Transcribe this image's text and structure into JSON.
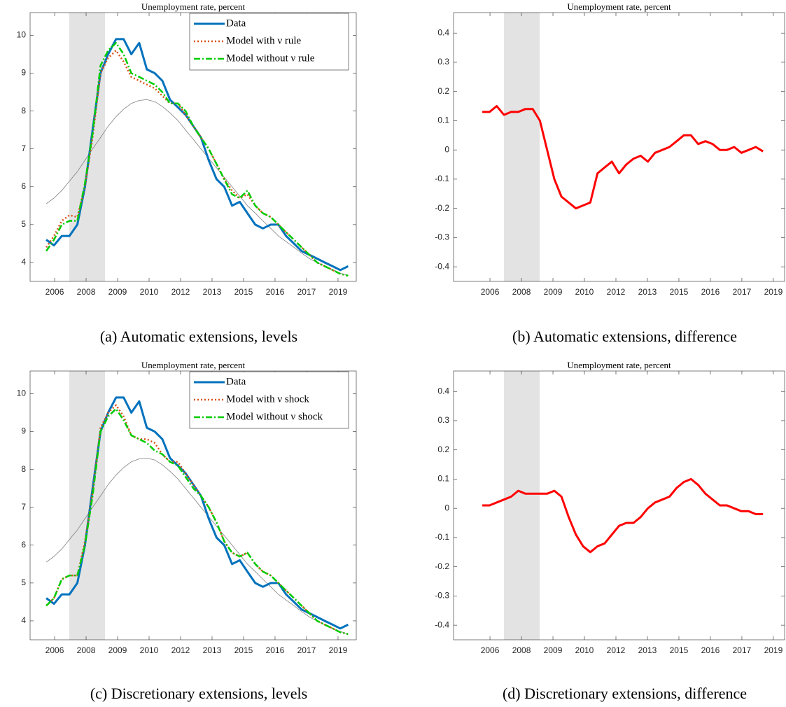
{
  "chart_data": [
    {
      "type": "line",
      "title": "Unemployment rate, percent",
      "caption": "(a) Automatic extensions, levels",
      "x": [
        2005.83,
        2006.17,
        2006.52,
        2006.86,
        2007.21,
        2007.55,
        2007.89,
        2008.24,
        2008.58,
        2008.93,
        2009.27,
        2009.61,
        2009.96,
        2010.3,
        2010.65,
        2010.99,
        2011.33,
        2011.68,
        2012.02,
        2012.37,
        2012.71,
        2013.05,
        2013.4,
        2013.74,
        2014.09,
        2014.43,
        2014.77,
        2015.12,
        2015.46,
        2015.81,
        2016.15,
        2016.49,
        2016.84,
        2017.18,
        2017.53,
        2017.87,
        2018.21,
        2018.56,
        2018.9,
        2019.25
      ],
      "series": [
        {
          "color": "#808080",
          "style": "solid",
          "width": 0.8,
          "values": [
            5.55,
            5.7,
            5.9,
            6.15,
            6.4,
            6.7,
            7.0,
            7.3,
            7.6,
            7.85,
            8.05,
            8.2,
            8.28,
            8.3,
            8.25,
            8.12,
            7.95,
            7.75,
            7.5,
            7.25,
            7.0,
            6.75,
            6.5,
            6.25,
            6.0,
            5.75,
            5.5,
            5.3,
            5.1,
            4.9,
            4.7,
            4.55,
            4.4,
            4.25,
            4.1,
            4.0,
            3.9,
            3.8,
            3.72,
            3.65
          ]
        },
        {
          "name": "Data",
          "color": "#0072bd",
          "style": "solid",
          "width": 3,
          "values": [
            4.6,
            4.45,
            4.7,
            4.7,
            5.0,
            6.0,
            7.5,
            9.0,
            9.5,
            9.9,
            9.9,
            9.5,
            9.8,
            9.1,
            9.0,
            8.8,
            8.3,
            8.1,
            7.9,
            7.6,
            7.3,
            6.7,
            6.2,
            6.0,
            5.5,
            5.6,
            5.3,
            5.0,
            4.9,
            5.0,
            5.0,
            4.7,
            4.5,
            4.3,
            4.2,
            4.1,
            4.0,
            3.9,
            3.8,
            3.9
          ]
        },
        {
          "name": "Model with ν rule",
          "color": "#d95319",
          "style": "dotted",
          "width": 2.5,
          "values": [
            4.4,
            4.7,
            5.1,
            5.25,
            5.2,
            6.0,
            7.3,
            9.0,
            9.4,
            9.6,
            9.3,
            8.9,
            8.8,
            8.7,
            8.6,
            8.4,
            8.2,
            8.2,
            7.9,
            7.6,
            7.3,
            7.0,
            6.6,
            6.2,
            5.9,
            5.7,
            5.8,
            5.5,
            5.3,
            5.2,
            5.0,
            4.8,
            4.6,
            4.4,
            4.2,
            4.0,
            3.9,
            3.8,
            3.7,
            3.65
          ]
        },
        {
          "name": "Model without ν rule",
          "color": "#00cc00",
          "style": "dashdot",
          "width": 2.5,
          "values": [
            4.3,
            4.6,
            5.0,
            5.1,
            5.1,
            6.1,
            7.4,
            9.2,
            9.6,
            9.8,
            9.5,
            9.0,
            8.9,
            8.8,
            8.7,
            8.5,
            8.2,
            8.2,
            8.0,
            7.6,
            7.3,
            7.0,
            6.6,
            6.2,
            5.8,
            5.7,
            5.9,
            5.5,
            5.3,
            5.2,
            5.0,
            4.8,
            4.6,
            4.4,
            4.2,
            4.0,
            3.9,
            3.8,
            3.7,
            3.65
          ]
        }
      ],
      "shade": [
        2006.85,
        2008.44
      ],
      "shade_color": "#e3e3e3",
      "xlim": [
        2005.11,
        2019.61
      ],
      "xticks": [
        {
          "value": 2006.2,
          "label": "2006"
        },
        {
          "value": 2007.6,
          "label": "2008"
        },
        {
          "value": 2009.0,
          "label": "2009"
        },
        {
          "value": 2010.4,
          "label": "2010"
        },
        {
          "value": 2011.8,
          "label": "2012"
        },
        {
          "value": 2013.2,
          "label": "2013"
        },
        {
          "value": 2014.6,
          "label": "2015"
        },
        {
          "value": 2016.0,
          "label": "2016"
        },
        {
          "value": 2017.4,
          "label": "2017"
        },
        {
          "value": 2018.8,
          "label": "2019"
        }
      ],
      "ylim": [
        3.5,
        10.6
      ],
      "yticks": [
        4,
        5,
        6,
        7,
        8,
        9,
        10
      ],
      "legend": "upper right"
    },
    {
      "type": "line",
      "title": "Unemployment rate, percent",
      "caption": "(b) Automatic extensions, difference",
      "x": [
        2005.86,
        2006.18,
        2006.5,
        2006.82,
        2007.14,
        2007.46,
        2007.78,
        2008.1,
        2008.42,
        2008.74,
        2009.06,
        2009.38,
        2009.7,
        2010.02,
        2010.34,
        2010.66,
        2010.98,
        2011.3,
        2011.62,
        2011.94,
        2012.26,
        2012.58,
        2012.9,
        2013.22,
        2013.54,
        2013.86,
        2014.18,
        2014.5,
        2014.82,
        2015.14,
        2015.46,
        2015.78,
        2016.1,
        2016.42,
        2016.74,
        2017.06,
        2017.38,
        2017.7,
        2018.02,
        2018.34
      ],
      "series": [
        {
          "color": "#ff0000",
          "style": "solid",
          "width": 3,
          "values": [
            0.13,
            0.13,
            0.15,
            0.12,
            0.13,
            0.13,
            0.14,
            0.14,
            0.1,
            0.0,
            -0.1,
            -0.16,
            -0.18,
            -0.2,
            -0.19,
            -0.18,
            -0.08,
            -0.06,
            -0.04,
            -0.08,
            -0.05,
            -0.03,
            -0.02,
            -0.04,
            -0.01,
            0.0,
            0.01,
            0.03,
            0.05,
            0.05,
            0.02,
            0.03,
            0.02,
            0.0,
            0.0,
            0.01,
            -0.01,
            0.0,
            0.01,
            -0.005
          ]
        }
      ],
      "shade": [
        2006.82,
        2008.41
      ],
      "shade_color": "#e3e3e3",
      "xlim": [
        2004.58,
        2019.3
      ],
      "xticks": [
        {
          "value": 2006.2,
          "label": "2006"
        },
        {
          "value": 2007.6,
          "label": "2008"
        },
        {
          "value": 2009.0,
          "label": "2009"
        },
        {
          "value": 2010.4,
          "label": "2010"
        },
        {
          "value": 2011.8,
          "label": "2012"
        },
        {
          "value": 2013.2,
          "label": "2013"
        },
        {
          "value": 2014.6,
          "label": "2015"
        },
        {
          "value": 2016.0,
          "label": "2016"
        },
        {
          "value": 2017.4,
          "label": "2017"
        },
        {
          "value": 2018.8,
          "label": "2019"
        }
      ],
      "ylim": [
        -0.45,
        0.47
      ],
      "yticks": [
        -0.4,
        -0.3,
        -0.2,
        -0.1,
        0,
        0.1,
        0.2,
        0.3,
        0.4
      ]
    },
    {
      "type": "line",
      "title": "Unemployment rate, percent",
      "caption": "(c) Discretionary extensions, levels",
      "x": [
        2005.83,
        2006.17,
        2006.52,
        2006.86,
        2007.21,
        2007.55,
        2007.89,
        2008.24,
        2008.58,
        2008.93,
        2009.27,
        2009.61,
        2009.96,
        2010.3,
        2010.65,
        2010.99,
        2011.33,
        2011.68,
        2012.02,
        2012.37,
        2012.71,
        2013.05,
        2013.4,
        2013.74,
        2014.09,
        2014.43,
        2014.77,
        2015.12,
        2015.46,
        2015.81,
        2016.15,
        2016.49,
        2016.84,
        2017.18,
        2017.53,
        2017.87,
        2018.21,
        2018.56,
        2018.9,
        2019.25
      ],
      "series": [
        {
          "color": "#808080",
          "style": "solid",
          "width": 0.8,
          "values": [
            5.55,
            5.7,
            5.9,
            6.15,
            6.4,
            6.7,
            7.0,
            7.3,
            7.6,
            7.85,
            8.05,
            8.2,
            8.28,
            8.3,
            8.25,
            8.12,
            7.95,
            7.75,
            7.5,
            7.25,
            7.0,
            6.75,
            6.5,
            6.25,
            6.0,
            5.75,
            5.5,
            5.3,
            5.1,
            4.9,
            4.7,
            4.55,
            4.4,
            4.25,
            4.1,
            4.0,
            3.9,
            3.8,
            3.72,
            3.65
          ]
        },
        {
          "name": "Data",
          "color": "#0072bd",
          "style": "solid",
          "width": 3,
          "values": [
            4.6,
            4.45,
            4.7,
            4.7,
            5.0,
            6.0,
            7.5,
            9.0,
            9.5,
            9.9,
            9.9,
            9.5,
            9.8,
            9.1,
            9.0,
            8.8,
            8.3,
            8.1,
            7.9,
            7.6,
            7.3,
            6.7,
            6.2,
            6.0,
            5.5,
            5.6,
            5.3,
            5.0,
            4.9,
            5.0,
            5.0,
            4.7,
            4.5,
            4.3,
            4.2,
            4.1,
            4.0,
            3.9,
            3.8,
            3.9
          ]
        },
        {
          "name": "Model with ν shock",
          "color": "#d95319",
          "style": "dotted",
          "width": 2.5,
          "values": [
            4.4,
            4.6,
            5.1,
            5.2,
            5.2,
            6.1,
            7.4,
            9.1,
            9.5,
            9.7,
            9.4,
            8.9,
            8.8,
            8.8,
            8.7,
            8.4,
            8.2,
            8.2,
            7.9,
            7.6,
            7.3,
            7.0,
            6.6,
            6.1,
            5.8,
            5.7,
            5.8,
            5.5,
            5.3,
            5.2,
            5.0,
            4.8,
            4.6,
            4.4,
            4.2,
            4.0,
            3.9,
            3.8,
            3.7,
            3.65
          ]
        },
        {
          "name": "Model without ν shock",
          "color": "#00cc00",
          "style": "dashdot",
          "width": 2.5,
          "values": [
            4.4,
            4.6,
            5.1,
            5.2,
            5.2,
            6.0,
            7.3,
            9.0,
            9.4,
            9.6,
            9.3,
            8.9,
            8.8,
            8.7,
            8.5,
            8.4,
            8.2,
            8.1,
            7.8,
            7.5,
            7.3,
            7.0,
            6.6,
            6.1,
            5.8,
            5.7,
            5.8,
            5.5,
            5.3,
            5.2,
            5.0,
            4.8,
            4.6,
            4.4,
            4.2,
            4.0,
            3.9,
            3.8,
            3.7,
            3.65
          ]
        }
      ],
      "shade": [
        2006.85,
        2008.44
      ],
      "shade_color": "#e3e3e3",
      "xlim": [
        2005.11,
        2019.61
      ],
      "xticks": [
        {
          "value": 2006.2,
          "label": "2006"
        },
        {
          "value": 2007.6,
          "label": "2008"
        },
        {
          "value": 2009.0,
          "label": "2009"
        },
        {
          "value": 2010.4,
          "label": "2010"
        },
        {
          "value": 2011.8,
          "label": "2012"
        },
        {
          "value": 2013.2,
          "label": "2013"
        },
        {
          "value": 2014.6,
          "label": "2015"
        },
        {
          "value": 2016.0,
          "label": "2016"
        },
        {
          "value": 2017.4,
          "label": "2017"
        },
        {
          "value": 2018.8,
          "label": "2019"
        }
      ],
      "ylim": [
        3.5,
        10.6
      ],
      "yticks": [
        4,
        5,
        6,
        7,
        8,
        9,
        10
      ],
      "legend": "upper right"
    },
    {
      "type": "line",
      "title": "Unemployment rate, percent",
      "caption": "(d) Discretionary extensions, difference",
      "x": [
        2005.86,
        2006.18,
        2006.5,
        2006.82,
        2007.14,
        2007.46,
        2007.78,
        2008.1,
        2008.42,
        2008.74,
        2009.06,
        2009.38,
        2009.7,
        2010.02,
        2010.34,
        2010.66,
        2010.98,
        2011.3,
        2011.62,
        2011.94,
        2012.26,
        2012.58,
        2012.9,
        2013.22,
        2013.54,
        2013.86,
        2014.18,
        2014.5,
        2014.82,
        2015.14,
        2015.46,
        2015.78,
        2016.1,
        2016.42,
        2016.74,
        2017.06,
        2017.38,
        2017.7,
        2018.02,
        2018.34
      ],
      "series": [
        {
          "color": "#ff0000",
          "style": "solid",
          "width": 3,
          "values": [
            0.01,
            0.01,
            0.02,
            0.03,
            0.04,
            0.06,
            0.05,
            0.05,
            0.05,
            0.05,
            0.06,
            0.04,
            -0.03,
            -0.09,
            -0.13,
            -0.15,
            -0.13,
            -0.12,
            -0.09,
            -0.06,
            -0.05,
            -0.05,
            -0.03,
            0.0,
            0.02,
            0.03,
            0.04,
            0.07,
            0.09,
            0.1,
            0.08,
            0.05,
            0.03,
            0.01,
            0.01,
            0.0,
            -0.01,
            -0.01,
            -0.02,
            -0.02
          ]
        }
      ],
      "shade": [
        2006.82,
        2008.41
      ],
      "shade_color": "#e3e3e3",
      "xlim": [
        2004.58,
        2019.3
      ],
      "xticks": [
        {
          "value": 2006.2,
          "label": "2006"
        },
        {
          "value": 2007.6,
          "label": "2008"
        },
        {
          "value": 2009.0,
          "label": "2009"
        },
        {
          "value": 2010.4,
          "label": "2010"
        },
        {
          "value": 2011.8,
          "label": "2012"
        },
        {
          "value": 2013.2,
          "label": "2013"
        },
        {
          "value": 2014.6,
          "label": "2015"
        },
        {
          "value": 2016.0,
          "label": "2016"
        },
        {
          "value": 2017.4,
          "label": "2017"
        },
        {
          "value": 2018.8,
          "label": "2019"
        }
      ],
      "ylim": [
        -0.45,
        0.47
      ],
      "yticks": [
        -0.4,
        -0.3,
        -0.2,
        -0.1,
        0,
        0.1,
        0.2,
        0.3,
        0.4
      ]
    }
  ]
}
